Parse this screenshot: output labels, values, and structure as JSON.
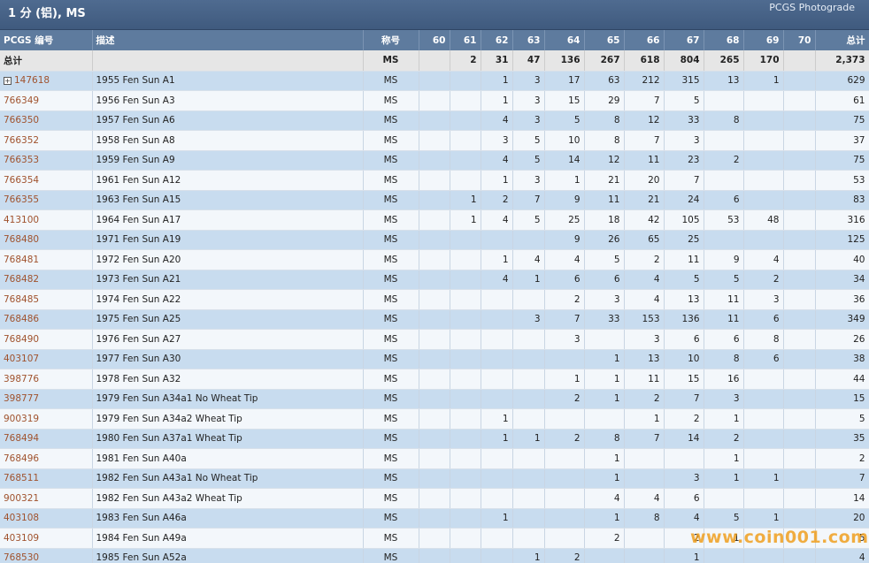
{
  "header": {
    "title": "1 分 (铝), MS",
    "brand": "PCGS Photograde"
  },
  "table": {
    "columns": {
      "number": "PCGS 编号",
      "description": "描述",
      "designation": "称号",
      "grades": [
        "60",
        "61",
        "62",
        "63",
        "64",
        "65",
        "66",
        "67",
        "68",
        "69",
        "70"
      ],
      "total": "总计"
    },
    "total_row": {
      "label": "总计",
      "designation": "MS",
      "grades": [
        "",
        "2",
        "31",
        "47",
        "136",
        "267",
        "618",
        "804",
        "265",
        "170",
        ""
      ],
      "total": "2,373"
    },
    "rows": [
      {
        "number": "147618",
        "expander": "+",
        "description": "1955 Fen Sun A1",
        "designation": "MS",
        "grades": [
          "",
          "",
          "1",
          "3",
          "17",
          "63",
          "212",
          "315",
          "13",
          "1",
          ""
        ],
        "total": "629"
      },
      {
        "number": "766349",
        "description": "1956 Fen Sun A3",
        "designation": "MS",
        "grades": [
          "",
          "",
          "1",
          "3",
          "15",
          "29",
          "7",
          "5",
          "",
          "",
          ""
        ],
        "total": "61"
      },
      {
        "number": "766350",
        "description": "1957 Fen Sun A6",
        "designation": "MS",
        "grades": [
          "",
          "",
          "4",
          "3",
          "5",
          "8",
          "12",
          "33",
          "8",
          "",
          ""
        ],
        "total": "75"
      },
      {
        "number": "766352",
        "description": "1958 Fen Sun A8",
        "designation": "MS",
        "grades": [
          "",
          "",
          "3",
          "5",
          "10",
          "8",
          "7",
          "3",
          "",
          "",
          ""
        ],
        "total": "37"
      },
      {
        "number": "766353",
        "description": "1959 Fen Sun A9",
        "designation": "MS",
        "grades": [
          "",
          "",
          "4",
          "5",
          "14",
          "12",
          "11",
          "23",
          "2",
          "",
          ""
        ],
        "total": "75"
      },
      {
        "number": "766354",
        "description": "1961 Fen Sun A12",
        "designation": "MS",
        "grades": [
          "",
          "",
          "1",
          "3",
          "1",
          "21",
          "20",
          "7",
          "",
          "",
          ""
        ],
        "total": "53"
      },
      {
        "number": "766355",
        "description": "1963 Fen Sun A15",
        "designation": "MS",
        "grades": [
          "",
          "1",
          "2",
          "7",
          "9",
          "11",
          "21",
          "24",
          "6",
          "",
          ""
        ],
        "total": "83"
      },
      {
        "number": "413100",
        "description": "1964 Fen Sun A17",
        "designation": "MS",
        "grades": [
          "",
          "1",
          "4",
          "5",
          "25",
          "18",
          "42",
          "105",
          "53",
          "48",
          ""
        ],
        "total": "316"
      },
      {
        "number": "768480",
        "description": "1971 Fen Sun A19",
        "designation": "MS",
        "grades": [
          "",
          "",
          "",
          "",
          "9",
          "26",
          "65",
          "25",
          "",
          "",
          ""
        ],
        "total": "125"
      },
      {
        "number": "768481",
        "description": "1972 Fen Sun A20",
        "designation": "MS",
        "grades": [
          "",
          "",
          "1",
          "4",
          "4",
          "5",
          "2",
          "11",
          "9",
          "4",
          ""
        ],
        "total": "40"
      },
      {
        "number": "768482",
        "description": "1973 Fen Sun A21",
        "designation": "MS",
        "grades": [
          "",
          "",
          "4",
          "1",
          "6",
          "6",
          "4",
          "5",
          "5",
          "2",
          ""
        ],
        "total": "34"
      },
      {
        "number": "768485",
        "description": "1974 Fen Sun A22",
        "designation": "MS",
        "grades": [
          "",
          "",
          "",
          "",
          "2",
          "3",
          "4",
          "13",
          "11",
          "3",
          ""
        ],
        "total": "36"
      },
      {
        "number": "768486",
        "description": "1975 Fen Sun A25",
        "designation": "MS",
        "grades": [
          "",
          "",
          "",
          "3",
          "7",
          "33",
          "153",
          "136",
          "11",
          "6",
          ""
        ],
        "total": "349"
      },
      {
        "number": "768490",
        "description": "1976 Fen Sun A27",
        "designation": "MS",
        "grades": [
          "",
          "",
          "",
          "",
          "3",
          "",
          "3",
          "6",
          "6",
          "8",
          ""
        ],
        "total": "26"
      },
      {
        "number": "403107",
        "description": "1977 Fen Sun A30",
        "designation": "MS",
        "grades": [
          "",
          "",
          "",
          "",
          "",
          "1",
          "13",
          "10",
          "8",
          "6",
          ""
        ],
        "total": "38"
      },
      {
        "number": "398776",
        "description": "1978 Fen Sun A32",
        "designation": "MS",
        "grades": [
          "",
          "",
          "",
          "",
          "1",
          "1",
          "11",
          "15",
          "16",
          "",
          ""
        ],
        "total": "44"
      },
      {
        "number": "398777",
        "description": "1979 Fen Sun A34a1 No Wheat Tip",
        "designation": "MS",
        "grades": [
          "",
          "",
          "",
          "",
          "2",
          "1",
          "2",
          "7",
          "3",
          "",
          ""
        ],
        "total": "15"
      },
      {
        "number": "900319",
        "description": "1979 Fen Sun A34a2 Wheat Tip",
        "designation": "MS",
        "grades": [
          "",
          "",
          "1",
          "",
          "",
          "",
          "1",
          "2",
          "1",
          "",
          ""
        ],
        "total": "5"
      },
      {
        "number": "768494",
        "description": "1980 Fen Sun A37a1 Wheat Tip",
        "designation": "MS",
        "grades": [
          "",
          "",
          "1",
          "1",
          "2",
          "8",
          "7",
          "14",
          "2",
          "",
          ""
        ],
        "total": "35"
      },
      {
        "number": "768496",
        "description": "1981 Fen Sun A40a",
        "designation": "MS",
        "grades": [
          "",
          "",
          "",
          "",
          "",
          "1",
          "",
          "",
          "1",
          "",
          ""
        ],
        "total": "2"
      },
      {
        "number": "768511",
        "description": "1982 Fen Sun A43a1 No Wheat Tip",
        "designation": "MS",
        "grades": [
          "",
          "",
          "",
          "",
          "",
          "1",
          "",
          "3",
          "1",
          "1",
          ""
        ],
        "total": "7"
      },
      {
        "number": "900321",
        "description": "1982 Fen Sun A43a2 Wheat Tip",
        "designation": "MS",
        "grades": [
          "",
          "",
          "",
          "",
          "",
          "4",
          "4",
          "6",
          "",
          "",
          ""
        ],
        "total": "14"
      },
      {
        "number": "403108",
        "description": "1983 Fen Sun A46a",
        "designation": "MS",
        "grades": [
          "",
          "",
          "1",
          "",
          "",
          "1",
          "8",
          "4",
          "5",
          "1",
          ""
        ],
        "total": "20"
      },
      {
        "number": "403109",
        "description": "1984 Fen Sun A49a",
        "designation": "MS",
        "grades": [
          "",
          "",
          "",
          "",
          "",
          "2",
          "",
          "2",
          "1",
          "",
          ""
        ],
        "total": "5"
      },
      {
        "number": "768530",
        "description": "1985 Fen Sun A52a",
        "designation": "MS",
        "grades": [
          "",
          "",
          "",
          "1",
          "2",
          "",
          "",
          "1",
          "",
          "",
          ""
        ],
        "total": "4"
      }
    ]
  },
  "watermark": "www.coin001.com",
  "colors": {
    "header": "#5e7b9e",
    "row_odd": "#c8dcef",
    "row_even": "#f3f7fb",
    "link": "#a0522d",
    "total_bg": "#e6e6e6"
  }
}
